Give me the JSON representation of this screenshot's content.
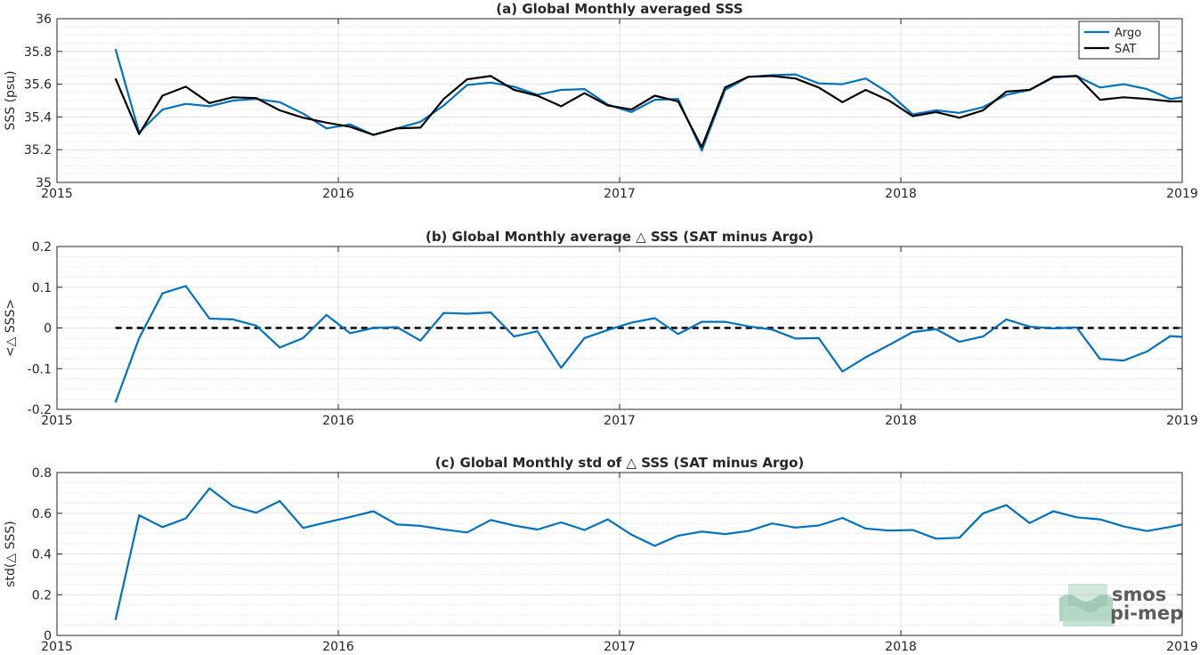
{
  "chart_data": [
    {
      "type": "line",
      "title": "(a) Global Monthly averaged SSS",
      "xlabel": "",
      "ylabel": "SSS (psu)",
      "xlim": [
        2015,
        2019
      ],
      "ylim": [
        35,
        36
      ],
      "xticks": [
        "2015",
        "2016",
        "2017",
        "2018",
        "2019"
      ],
      "yticks": [
        "35",
        "35.2",
        "35.4",
        "35.6",
        "35.8",
        "36"
      ],
      "grid": true,
      "legend": "top-right",
      "x": [
        2015.208,
        2015.292,
        2015.375,
        2015.458,
        2015.542,
        2015.625,
        2015.708,
        2015.792,
        2015.875,
        2015.958,
        2016.042,
        2016.125,
        2016.208,
        2016.292,
        2016.375,
        2016.458,
        2016.542,
        2016.625,
        2016.708,
        2016.792,
        2016.875,
        2016.958,
        2017.042,
        2017.125,
        2017.208,
        2017.292,
        2017.375,
        2017.458,
        2017.542,
        2017.625,
        2017.708,
        2017.792,
        2017.875,
        2017.958,
        2018.042,
        2018.125,
        2018.208,
        2018.292,
        2018.375,
        2018.458,
        2018.542,
        2018.625,
        2018.708,
        2018.792,
        2018.875,
        2018.958,
        2019.0
      ],
      "series": [
        {
          "name": "Argo",
          "color": "#0072bd",
          "values": [
            35.815,
            35.305,
            35.445,
            35.48,
            35.465,
            35.5,
            35.51,
            35.49,
            35.42,
            35.33,
            35.355,
            35.29,
            35.33,
            35.37,
            35.47,
            35.595,
            35.61,
            35.585,
            35.535,
            35.565,
            35.57,
            35.475,
            35.43,
            35.505,
            35.51,
            35.195,
            35.565,
            35.645,
            35.655,
            35.66,
            35.605,
            35.6,
            35.635,
            35.545,
            35.415,
            35.44,
            35.425,
            35.46,
            35.535,
            35.565,
            35.64,
            35.65,
            35.58,
            35.6,
            35.57,
            35.51,
            35.52
          ]
        },
        {
          "name": "SAT",
          "color": "#000000",
          "values": [
            35.635,
            35.295,
            35.53,
            35.585,
            35.485,
            35.52,
            35.515,
            35.44,
            35.395,
            35.365,
            35.34,
            35.29,
            35.33,
            35.335,
            35.51,
            35.63,
            35.65,
            35.565,
            35.53,
            35.465,
            35.545,
            35.47,
            35.445,
            35.53,
            35.495,
            35.215,
            35.58,
            35.645,
            35.65,
            35.635,
            35.58,
            35.49,
            35.565,
            35.5,
            35.405,
            35.43,
            35.395,
            35.44,
            35.555,
            35.565,
            35.645,
            35.65,
            35.505,
            35.52,
            35.51,
            35.495,
            35.495
          ]
        }
      ]
    },
    {
      "type": "line",
      "title": "(b) Global Monthly average △ SSS (SAT minus Argo)",
      "xlabel": "",
      "ylabel": "<△ SSS>",
      "xlim": [
        2015,
        2019
      ],
      "ylim": [
        -0.2,
        0.2
      ],
      "xticks": [
        "2015",
        "2016",
        "2017",
        "2018",
        "2019"
      ],
      "yticks": [
        "-0.2",
        "-0.1",
        "0",
        "0.1",
        "0.2"
      ],
      "grid": true,
      "reference_line": {
        "y": 0,
        "style": "dashed",
        "color": "#000000"
      },
      "x": [
        2015.208,
        2015.292,
        2015.375,
        2015.458,
        2015.542,
        2015.625,
        2015.708,
        2015.792,
        2015.875,
        2015.958,
        2016.042,
        2016.125,
        2016.208,
        2016.292,
        2016.375,
        2016.458,
        2016.542,
        2016.625,
        2016.708,
        2016.792,
        2016.875,
        2016.958,
        2017.042,
        2017.125,
        2017.208,
        2017.292,
        2017.375,
        2017.458,
        2017.542,
        2017.625,
        2017.708,
        2017.792,
        2017.875,
        2017.958,
        2018.042,
        2018.125,
        2018.208,
        2018.292,
        2018.375,
        2018.458,
        2018.542,
        2018.625,
        2018.708,
        2018.792,
        2018.875,
        2018.958,
        2019.0
      ],
      "series": [
        {
          "color": "#0072bd",
          "values": [
            -0.183,
            -0.025,
            0.085,
            0.103,
            0.023,
            0.021,
            0.006,
            -0.048,
            -0.025,
            0.032,
            -0.013,
            0.0,
            0.002,
            -0.031,
            0.037,
            0.035,
            0.038,
            -0.021,
            -0.008,
            -0.098,
            -0.025,
            -0.005,
            0.013,
            0.024,
            -0.015,
            0.015,
            0.015,
            0.004,
            -0.004,
            -0.026,
            -0.025,
            -0.107,
            -0.072,
            -0.042,
            -0.01,
            -0.003,
            -0.034,
            -0.021,
            0.021,
            0.003,
            -0.001,
            0.001,
            -0.076,
            -0.08,
            -0.058,
            -0.02,
            -0.022
          ]
        }
      ]
    },
    {
      "type": "line",
      "title": "(c) Global Monthly std of △ SSS (SAT minus Argo)",
      "xlabel": "",
      "ylabel": "std(△ SSS)",
      "xlim": [
        2015,
        2019
      ],
      "ylim": [
        0,
        0.8
      ],
      "xticks": [
        "2015",
        "2016",
        "2017",
        "2018",
        "2019"
      ],
      "yticks": [
        "0",
        "0.2",
        "0.4",
        "0.6",
        "0.8"
      ],
      "grid": true,
      "x": [
        2015.208,
        2015.292,
        2015.375,
        2015.458,
        2015.542,
        2015.625,
        2015.708,
        2015.792,
        2015.875,
        2015.958,
        2016.042,
        2016.125,
        2016.208,
        2016.292,
        2016.375,
        2016.458,
        2016.542,
        2016.625,
        2016.708,
        2016.792,
        2016.875,
        2016.958,
        2017.042,
        2017.125,
        2017.208,
        2017.292,
        2017.375,
        2017.458,
        2017.542,
        2017.625,
        2017.708,
        2017.792,
        2017.875,
        2017.958,
        2018.042,
        2018.125,
        2018.208,
        2018.292,
        2018.375,
        2018.458,
        2018.542,
        2018.625,
        2018.708,
        2018.792,
        2018.875,
        2018.958,
        2019.0
      ],
      "series": [
        {
          "color": "#0072bd",
          "values": [
            0.075,
            0.59,
            0.532,
            0.575,
            0.722,
            0.635,
            0.603,
            0.66,
            0.528,
            0.555,
            0.582,
            0.61,
            0.545,
            0.538,
            0.52,
            0.506,
            0.567,
            0.54,
            0.52,
            0.555,
            0.518,
            0.57,
            0.495,
            0.44,
            0.49,
            0.51,
            0.498,
            0.513,
            0.55,
            0.53,
            0.54,
            0.577,
            0.525,
            0.515,
            0.518,
            0.475,
            0.48,
            0.6,
            0.64,
            0.552,
            0.61,
            0.58,
            0.57,
            0.535,
            0.513,
            0.533,
            0.545
          ]
        }
      ]
    }
  ],
  "logo": {
    "line1": "smos",
    "line2": "pi-mep",
    "color": "#6aab8b"
  }
}
